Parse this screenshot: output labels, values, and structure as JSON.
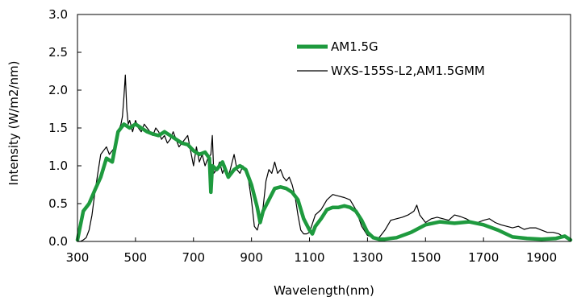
{
  "chart_data": {
    "type": "line",
    "title": "",
    "xlabel": "Wavelength(nm)",
    "ylabel": "Intensity (W/m2/nm)",
    "xlim": [
      300,
      2000
    ],
    "ylim": [
      0,
      3.0
    ],
    "x_ticks": [
      300,
      500,
      700,
      900,
      1100,
      1300,
      1500,
      1700,
      1900
    ],
    "y_ticks": [
      "0.0",
      "0.5",
      "1.0",
      "1.5",
      "2.0",
      "2.5",
      "3.0"
    ],
    "legend_position": "top-right",
    "grid": false,
    "series": [
      {
        "name": "AM1.5G",
        "color": "#1e9a3e",
        "line_width": "thick",
        "x": [
          300,
          320,
          340,
          360,
          380,
          400,
          420,
          440,
          460,
          480,
          500,
          520,
          540,
          560,
          580,
          600,
          620,
          640,
          660,
          680,
          700,
          720,
          740,
          755,
          760,
          765,
          780,
          800,
          820,
          840,
          860,
          880,
          900,
          920,
          930,
          940,
          960,
          980,
          1000,
          1020,
          1040,
          1060,
          1080,
          1100,
          1110,
          1120,
          1140,
          1160,
          1180,
          1200,
          1220,
          1240,
          1260,
          1280,
          1300,
          1320,
          1340,
          1360,
          1380,
          1400,
          1450,
          1500,
          1550,
          1600,
          1650,
          1700,
          1750,
          1800,
          1850,
          1900,
          1950,
          1980,
          2000
        ],
        "y": [
          0.02,
          0.4,
          0.5,
          0.68,
          0.85,
          1.1,
          1.05,
          1.45,
          1.55,
          1.5,
          1.55,
          1.5,
          1.45,
          1.42,
          1.4,
          1.45,
          1.4,
          1.35,
          1.3,
          1.28,
          1.2,
          1.15,
          1.18,
          1.1,
          0.65,
          1.0,
          0.95,
          1.05,
          0.85,
          0.95,
          1.0,
          0.95,
          0.75,
          0.45,
          0.25,
          0.4,
          0.55,
          0.7,
          0.72,
          0.7,
          0.65,
          0.55,
          0.3,
          0.15,
          0.1,
          0.2,
          0.3,
          0.42,
          0.45,
          0.45,
          0.47,
          0.45,
          0.4,
          0.28,
          0.12,
          0.05,
          0.03,
          0.03,
          0.04,
          0.05,
          0.12,
          0.22,
          0.26,
          0.24,
          0.26,
          0.22,
          0.15,
          0.06,
          0.04,
          0.03,
          0.04,
          0.07,
          0.02
        ]
      },
      {
        "name": "WXS-155S-L2,AM1.5GMM",
        "color": "#000000",
        "line_width": "thin",
        "x": [
          300,
          310,
          320,
          330,
          340,
          350,
          360,
          370,
          380,
          390,
          400,
          410,
          420,
          430,
          440,
          450,
          455,
          460,
          465,
          470,
          475,
          480,
          490,
          500,
          510,
          520,
          530,
          540,
          550,
          560,
          570,
          580,
          590,
          600,
          610,
          620,
          630,
          640,
          650,
          660,
          670,
          680,
          690,
          700,
          710,
          720,
          730,
          740,
          750,
          760,
          765,
          770,
          780,
          790,
          800,
          810,
          820,
          830,
          840,
          850,
          860,
          870,
          880,
          890,
          900,
          910,
          920,
          930,
          940,
          950,
          960,
          970,
          980,
          990,
          1000,
          1010,
          1020,
          1030,
          1040,
          1050,
          1060,
          1070,
          1080,
          1090,
          1100,
          1120,
          1140,
          1160,
          1180,
          1200,
          1220,
          1240,
          1260,
          1280,
          1300,
          1320,
          1340,
          1360,
          1380,
          1400,
          1420,
          1440,
          1460,
          1470,
          1480,
          1490,
          1500,
          1520,
          1540,
          1560,
          1580,
          1600,
          1620,
          1640,
          1660,
          1680,
          1700,
          1720,
          1740,
          1760,
          1780,
          1800,
          1820,
          1840,
          1860,
          1880,
          1900,
          1920,
          1940,
          1960,
          1980,
          2000
        ],
        "y": [
          0.0,
          0.0,
          0.02,
          0.05,
          0.15,
          0.35,
          0.65,
          0.9,
          1.15,
          1.2,
          1.25,
          1.15,
          1.2,
          1.25,
          1.45,
          1.55,
          1.65,
          1.9,
          2.2,
          1.75,
          1.55,
          1.6,
          1.45,
          1.6,
          1.5,
          1.45,
          1.55,
          1.5,
          1.45,
          1.4,
          1.5,
          1.45,
          1.35,
          1.4,
          1.3,
          1.35,
          1.45,
          1.35,
          1.25,
          1.3,
          1.35,
          1.4,
          1.2,
          1.0,
          1.25,
          1.05,
          1.15,
          1.0,
          1.1,
          1.15,
          1.4,
          0.9,
          0.95,
          1.05,
          0.9,
          1.0,
          0.85,
          1.0,
          1.15,
          0.95,
          0.9,
          1.0,
          0.95,
          0.8,
          0.55,
          0.2,
          0.15,
          0.3,
          0.45,
          0.8,
          0.95,
          0.9,
          1.05,
          0.9,
          0.95,
          0.85,
          0.8,
          0.85,
          0.75,
          0.6,
          0.35,
          0.15,
          0.1,
          0.1,
          0.12,
          0.35,
          0.42,
          0.55,
          0.62,
          0.6,
          0.58,
          0.55,
          0.42,
          0.2,
          0.08,
          0.05,
          0.05,
          0.15,
          0.28,
          0.3,
          0.32,
          0.35,
          0.4,
          0.48,
          0.35,
          0.3,
          0.25,
          0.3,
          0.32,
          0.3,
          0.28,
          0.35,
          0.33,
          0.3,
          0.26,
          0.25,
          0.28,
          0.3,
          0.25,
          0.22,
          0.2,
          0.18,
          0.2,
          0.16,
          0.18,
          0.18,
          0.15,
          0.12,
          0.12,
          0.1,
          0.05,
          0.0
        ]
      }
    ]
  }
}
